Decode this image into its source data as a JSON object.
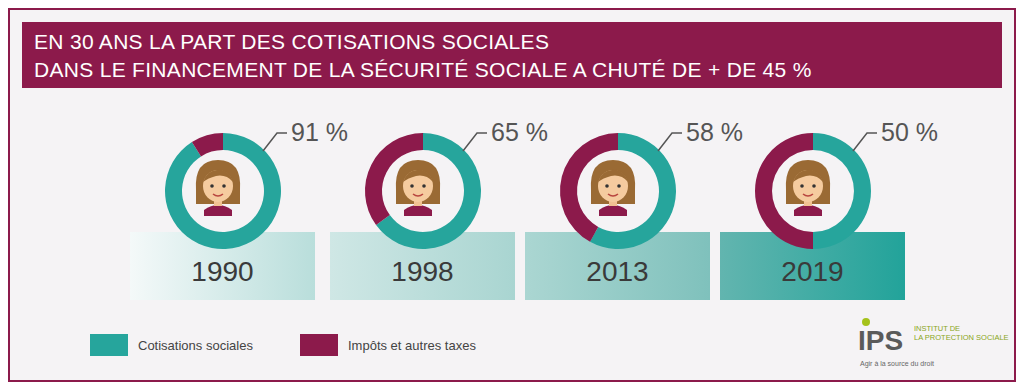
{
  "title": [
    "EN 30 ANS LA PART DES COTISATIONS SOCIALES",
    "DANS LE FINANCEMENT DE LA SÉCURITÉ SOCIALE A CHUTÉ DE + DE 45 %"
  ],
  "chart_data": [
    {
      "type": "pie",
      "title": "1990",
      "categories": [
        "Cotisations sociales",
        "Impôts et autres taxes"
      ],
      "values": [
        91,
        9
      ],
      "colors": [
        "#26a59c",
        "#8c1a4b"
      ],
      "value_labels": [
        "91 %",
        null
      ],
      "data_labels": true,
      "legend": "bottom-left"
    },
    {
      "type": "pie",
      "title": "1998",
      "categories": [
        "Cotisations sociales",
        "Impôts et autres taxes"
      ],
      "values": [
        65,
        35
      ],
      "colors": [
        "#26a59c",
        "#8c1a4b"
      ],
      "value_labels": [
        "65 %",
        null
      ],
      "data_labels": true,
      "legend": "bottom-left"
    },
    {
      "type": "pie",
      "title": "2013",
      "categories": [
        "Cotisations sociales",
        "Impôts et autres taxes"
      ],
      "values": [
        58,
        42
      ],
      "colors": [
        "#26a59c",
        "#8c1a4b"
      ],
      "value_labels": [
        "58 %",
        null
      ],
      "data_labels": true,
      "legend": "bottom-left"
    },
    {
      "type": "pie",
      "title": "2019",
      "categories": [
        "Cotisations sociales",
        "Impôts et autres taxes"
      ],
      "values": [
        50,
        50
      ],
      "colors": [
        "#26a59c",
        "#8c1a4b"
      ],
      "value_labels": [
        "50 %",
        null
      ],
      "data_labels": true,
      "legend": "bottom-left"
    }
  ],
  "logo": {
    "name": "IPS",
    "lines": [
      "INSTITUT DE",
      "LA PROTECTION SOCIALE"
    ],
    "tagline": "Agir à la source du droit"
  }
}
